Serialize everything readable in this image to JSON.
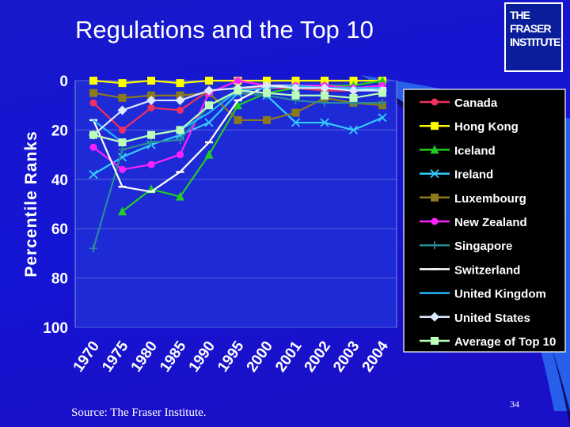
{
  "slide": {
    "title": "Regulations and the Top 10",
    "source": "Source: The Fraser Institute.",
    "page_number": "34",
    "logo_text": [
      "THE FRASER",
      "INSTITUTE"
    ],
    "background_color": "#1414d4"
  },
  "chart_data": {
    "type": "line",
    "title": "",
    "xlabel": "",
    "ylabel": "Percentile Ranks",
    "x": [
      "1970",
      "1975",
      "1980",
      "1985",
      "1990",
      "1995",
      "2000",
      "2001",
      "2002",
      "2003",
      "2004"
    ],
    "ylim": [
      0,
      100
    ],
    "y_reversed": true,
    "y_ticks": [
      0,
      20,
      40,
      60,
      80,
      100
    ],
    "grid": true,
    "legend_position": "right",
    "series": [
      {
        "name": "Canada",
        "color": "#f03060",
        "marker": "circle",
        "values": [
          9,
          20,
          11,
          12,
          4,
          3,
          3,
          3,
          4,
          4,
          3
        ]
      },
      {
        "name": "Hong Kong",
        "color": "#ffff00",
        "marker": "square",
        "values": [
          0,
          1,
          0,
          1,
          0,
          0,
          0,
          0,
          0,
          0,
          0
        ]
      },
      {
        "name": "Iceland",
        "color": "#22cc22",
        "marker": "triangle",
        "values": [
          null,
          53,
          44,
          47,
          30,
          10,
          5,
          3,
          2,
          2,
          0
        ]
      },
      {
        "name": "Ireland",
        "color": "#33ccff",
        "marker": "x",
        "values": [
          38,
          31,
          26,
          22,
          17,
          5,
          6,
          17,
          17,
          20,
          15
        ]
      },
      {
        "name": "Luxembourg",
        "color": "#8a7a1c",
        "marker": "square",
        "values": [
          5,
          7,
          6,
          6,
          5,
          16,
          16,
          13,
          7,
          9,
          10
        ]
      },
      {
        "name": "New Zealand",
        "color": "#ff22ff",
        "marker": "circle",
        "values": [
          27,
          36,
          34,
          30,
          5,
          0,
          2,
          2,
          2,
          3,
          2
        ]
      },
      {
        "name": "Singapore",
        "color": "#2a8a9a",
        "marker": "plus",
        "values": [
          68,
          28,
          25,
          24,
          10,
          5,
          6,
          8,
          9,
          9,
          9
        ]
      },
      {
        "name": "Switzerland",
        "color": "#ffffff",
        "marker": "dash",
        "values": [
          16,
          43,
          45,
          37,
          25,
          8,
          2,
          2,
          3,
          4,
          3
        ]
      },
      {
        "name": "United Kingdom",
        "color": "#22b8ff",
        "marker": "none",
        "values": [
          16,
          25,
          22,
          20,
          13,
          4,
          3,
          2,
          3,
          3,
          3
        ]
      },
      {
        "name": "United States",
        "color": "#dde8ff",
        "marker": "diamond",
        "values": [
          22,
          12,
          8,
          8,
          4,
          3,
          2,
          3,
          3,
          4,
          4
        ]
      },
      {
        "name": "Average of Top 10",
        "color": "#bbffbb",
        "marker": "square",
        "values": [
          22,
          25,
          22,
          20,
          10,
          4,
          5,
          6,
          6,
          7,
          5
        ]
      }
    ]
  }
}
